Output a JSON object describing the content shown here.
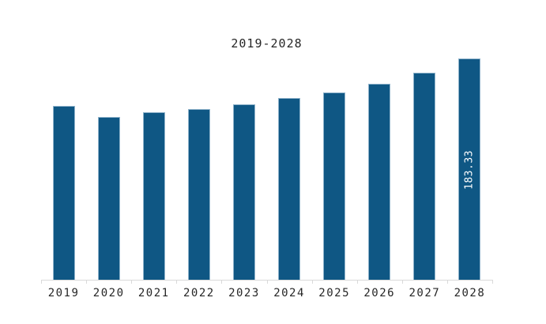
{
  "chart": {
    "title": "2019-2028"
  },
  "chart_data": {
    "type": "bar",
    "title": "2019-2028",
    "categories": [
      "2019",
      "2020",
      "2021",
      "2022",
      "2023",
      "2024",
      "2025",
      "2026",
      "2027",
      "2028"
    ],
    "values": [
      144.0,
      135.0,
      139.1,
      141.4,
      145.1,
      150.3,
      155.5,
      162.5,
      171.9,
      183.33
    ],
    "data_labels": [
      "",
      "",
      "",
      "",
      "",
      "",
      "",
      "",
      "",
      "183.33"
    ],
    "xlabel": "",
    "ylabel": "",
    "grid": false,
    "legend": false,
    "y_axis_visible": false,
    "colors": {
      "bar_fill": "#0F5784",
      "bar_border": "#8FB3CB",
      "axis": "#D9D9D9",
      "tick_label": "#262626",
      "title": "#262626",
      "data_label": "#FFFFFF",
      "background": "#FFFFFF"
    }
  }
}
